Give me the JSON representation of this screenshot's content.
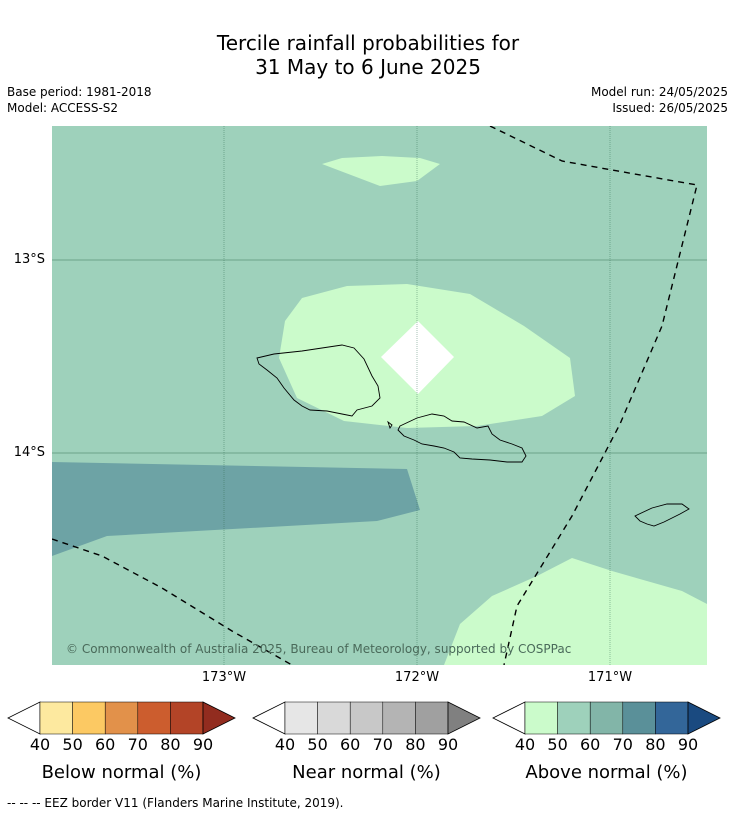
{
  "title_line1": "Tercile rainfall probabilities for",
  "title_line2": "31 May to 6 June 2025",
  "base_period": "Base period: 1981-2018",
  "model": "Model: ACCESS-S2",
  "model_run": "Model run: 24/05/2025",
  "issued": "Issued: 26/05/2025",
  "lat_labels": [
    "13°S",
    "14°S"
  ],
  "lon_labels": [
    "173°W",
    "172°W",
    "171°W"
  ],
  "copyright": "© Commonwealth of Australia 2025, Bureau of Meteorology, supported by COSPPac",
  "footnote": "--  --  -- EEZ border V11 (Flanders Marine Institute, 2019).",
  "colors": {
    "above_50": "#9ed1bb",
    "above_40": "#cbfbcb",
    "above_60": "#6da3a5",
    "border": "#000000"
  },
  "colorbars": [
    {
      "title": "Below normal (%)",
      "ticks": [
        "40",
        "50",
        "60",
        "70",
        "80",
        "90"
      ],
      "colors": [
        "#ffffff",
        "#fde99f",
        "#fcc963",
        "#e2914a",
        "#cc5d2e",
        "#b34427",
        "#922c1f"
      ]
    },
    {
      "title": "Near normal (%)",
      "ticks": [
        "40",
        "50",
        "60",
        "70",
        "80",
        "90"
      ],
      "colors": [
        "#ffffff",
        "#e6e6e6",
        "#d9d9d9",
        "#c8c8c8",
        "#b4b4b4",
        "#a0a0a0",
        "#808080"
      ]
    },
    {
      "title": "Above normal (%)",
      "ticks": [
        "40",
        "50",
        "60",
        "70",
        "80",
        "90"
      ],
      "colors": [
        "#ffffff",
        "#cbfbcb",
        "#9ed1bb",
        "#82b5a8",
        "#5a9099",
        "#336699",
        "#1a4a80"
      ]
    }
  ]
}
